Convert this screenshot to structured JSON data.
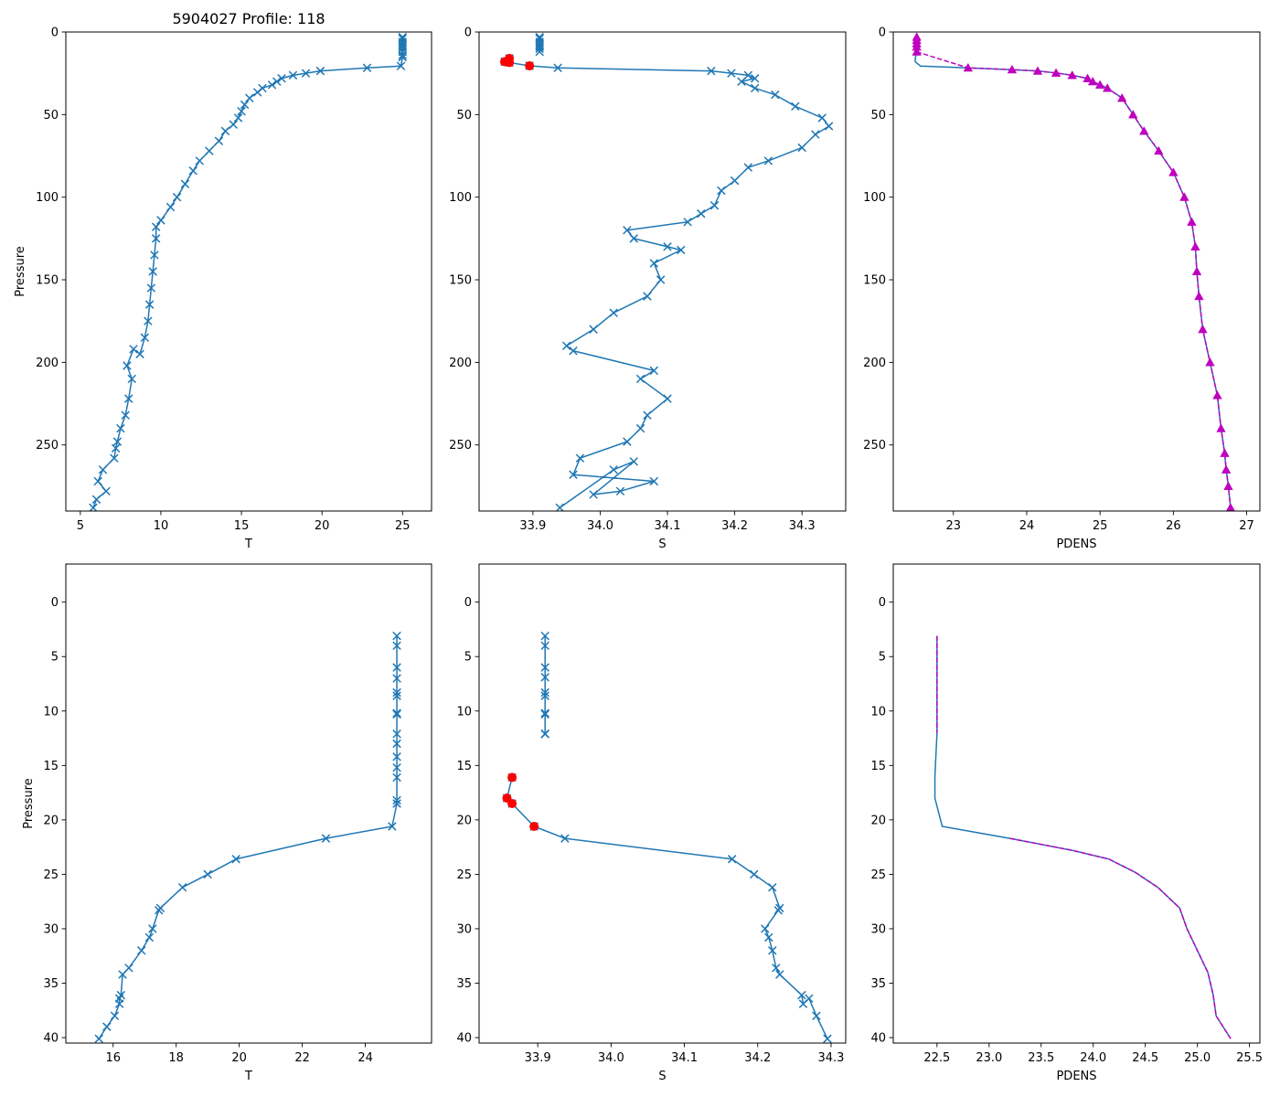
{
  "colors": {
    "line": "#1f77b4",
    "flag": "#ff0000",
    "pdens": "#bf00bf",
    "frame": "#000000"
  },
  "chart_data": [
    {
      "title": "5904027 Profile: 118",
      "type": "line",
      "xlabel": "T",
      "ylabel": "Pressure",
      "xlim": [
        4.1,
        26.8
      ],
      "ylim": [
        290,
        0
      ],
      "xticks": [
        5,
        10,
        15,
        20,
        25
      ],
      "xtick_labels": [
        "5",
        "10",
        "15",
        "20",
        "25"
      ],
      "yticks": [
        0,
        50,
        100,
        150,
        200,
        250
      ],
      "ytick_labels": [
        "0",
        "50",
        "100",
        "150",
        "200",
        "250"
      ],
      "series": [
        {
          "name": "T",
          "marker": "x",
          "style": "solid",
          "color": "#1f77b4",
          "x": [
            25.0,
            25.0,
            25.0,
            25.0,
            25.0,
            25.0,
            25.0,
            25.0,
            25.0,
            25.0,
            24.9,
            22.8,
            19.9,
            19.0,
            18.2,
            17.5,
            17.2,
            16.9,
            16.3,
            16.0,
            15.5,
            15.2,
            15.0,
            14.8,
            14.5,
            14.0,
            13.6,
            13.0,
            12.4,
            12.0,
            11.5,
            11.0,
            10.6,
            10.0,
            9.7,
            9.7,
            9.6,
            9.5,
            9.4,
            9.3,
            9.2,
            9.0,
            8.7,
            8.3,
            7.9,
            8.2,
            8.0,
            7.8,
            7.5,
            7.3,
            7.2,
            7.1,
            6.4,
            6.1,
            6.6,
            6.0,
            5.8
          ],
          "y": [
            3.1,
            4,
            6,
            7,
            8.3,
            9,
            10.2,
            12,
            14,
            15.2,
            20.6,
            21.7,
            23.6,
            25,
            26.2,
            28.1,
            30,
            32,
            34,
            36.5,
            40,
            44,
            48,
            52,
            56,
            60,
            66,
            72,
            78,
            84,
            92,
            100,
            106,
            114,
            118,
            125,
            135,
            145,
            155,
            165,
            175,
            185,
            195,
            192,
            202,
            210,
            222,
            232,
            240,
            248,
            252,
            258,
            265,
            272,
            278,
            283,
            288
          ]
        }
      ]
    },
    {
      "title": "",
      "type": "line",
      "xlabel": "S",
      "ylabel": "",
      "xlim": [
        33.82,
        34.365
      ],
      "ylim": [
        290,
        0
      ],
      "xticks": [
        33.9,
        34.0,
        34.1,
        34.2,
        34.3
      ],
      "xtick_labels": [
        "33.9",
        "34.0",
        "34.1",
        "34.2",
        "34.3"
      ],
      "yticks": [
        0,
        50,
        100,
        150,
        200,
        250
      ],
      "ytick_labels": [
        "0",
        "50",
        "100",
        "150",
        "200",
        "250"
      ],
      "series": [
        {
          "name": "S",
          "marker": "x",
          "style": "solid",
          "color": "#1f77b4",
          "segments": [
            {
              "x": [
                33.91,
                33.91,
                33.91,
                33.91,
                33.91,
                33.91,
                33.91,
                33.91
              ],
              "y": [
                3.1,
                4,
                6,
                7,
                8.3,
                9,
                10.2,
                12
              ]
            },
            {
              "x": [
                33.865,
                33.858,
                33.865,
                33.895,
                33.937,
                34.165,
                34.195,
                34.22,
                34.23,
                34.21,
                34.23,
                34.26,
                34.29,
                34.33,
                34.34,
                34.32,
                34.3,
                34.25,
                34.22,
                34.2,
                34.18,
                34.17,
                34.15,
                34.13,
                34.04,
                34.05,
                34.1,
                34.12,
                34.08,
                34.09,
                34.07,
                34.02,
                33.99,
                33.95,
                33.96,
                34.08,
                34.06,
                34.1,
                34.07,
                34.06,
                34.04,
                33.97,
                33.96,
                34.08,
                34.03,
                33.99,
                34.05,
                34.02,
                33.94
              ],
              "y": [
                16,
                18,
                18.5,
                20.5,
                21.7,
                23.6,
                25,
                26.2,
                28.1,
                30,
                34,
                38,
                45,
                52,
                57,
                62,
                70,
                78,
                82,
                90,
                96,
                105,
                110,
                115,
                120,
                125,
                130,
                132,
                140,
                150,
                160,
                170,
                180,
                190,
                193,
                205,
                210,
                222,
                232,
                240,
                248,
                258,
                268,
                272,
                278,
                280,
                260,
                265,
                288
              ]
            }
          ]
        },
        {
          "name": "flagged",
          "marker": "o",
          "style": "none",
          "color": "#ff0000",
          "x": [
            33.865,
            33.858,
            33.865,
            33.895
          ],
          "y": [
            16,
            18,
            18.5,
            20.5
          ]
        }
      ]
    },
    {
      "title": "",
      "type": "line",
      "xlabel": "PDENS",
      "ylabel": "",
      "xlim": [
        22.18,
        27.18
      ],
      "ylim": [
        290,
        0
      ],
      "xticks": [
        23,
        24,
        25,
        26,
        27
      ],
      "xtick_labels": [
        "23",
        "24",
        "25",
        "26",
        "27"
      ],
      "yticks": [
        0,
        50,
        100,
        150,
        200,
        250
      ],
      "ytick_labels": [
        "0",
        "50",
        "100",
        "150",
        "200",
        "250"
      ],
      "series": [
        {
          "name": "PDENS",
          "marker": "none",
          "style": "solid",
          "color": "#1f77b4",
          "x": [
            22.5,
            22.5,
            22.5,
            22.5,
            22.5,
            22.48,
            22.48,
            22.55,
            23.2,
            23.8,
            24.15,
            24.4,
            24.62,
            24.83,
            24.9,
            25.0,
            25.1,
            25.3,
            25.45,
            25.6,
            25.8,
            26.0,
            26.15,
            26.25,
            26.3,
            26.32,
            26.35,
            26.4,
            26.5,
            26.6,
            26.65,
            26.7,
            26.72,
            26.75,
            26.78
          ],
          "y": [
            3.1,
            6,
            9,
            12,
            12,
            16,
            18,
            20.6,
            21.7,
            22.8,
            23.6,
            24.8,
            26.2,
            28.1,
            30,
            32,
            34,
            40,
            50,
            60,
            72,
            85,
            100,
            115,
            130,
            145,
            160,
            180,
            200,
            220,
            240,
            255,
            265,
            275,
            288
          ]
        },
        {
          "name": "PDENS (dashed)",
          "marker": "^",
          "style": "dashed",
          "color": "#bf00bf",
          "x": [
            22.5,
            22.5,
            22.5,
            22.5,
            22.5,
            23.2,
            23.8,
            24.15,
            24.4,
            24.62,
            24.83,
            24.9,
            25.0,
            25.1,
            25.3,
            25.45,
            25.6,
            25.8,
            26.0,
            26.15,
            26.25,
            26.3,
            26.32,
            26.35,
            26.4,
            26.5,
            26.6,
            26.65,
            26.7,
            26.72,
            26.75,
            26.78
          ],
          "y": [
            3.1,
            5,
            7,
            9,
            12,
            21.7,
            22.8,
            23.6,
            24.8,
            26.2,
            28.1,
            30,
            32,
            34,
            40,
            50,
            60,
            72,
            85,
            100,
            115,
            130,
            145,
            160,
            180,
            200,
            220,
            240,
            255,
            265,
            275,
            288
          ]
        }
      ]
    },
    {
      "title": "",
      "type": "line",
      "xlabel": "T",
      "ylabel": "Pressure",
      "xlim": [
        14.5,
        26.1
      ],
      "ylim": [
        40.5,
        -3.5
      ],
      "xticks": [
        16,
        18,
        20,
        22,
        24
      ],
      "xtick_labels": [
        "16",
        "18",
        "20",
        "22",
        "24"
      ],
      "yticks": [
        0,
        5,
        10,
        15,
        20,
        25,
        30,
        35,
        40
      ],
      "ytick_labels": [
        "0",
        "5",
        "10",
        "15",
        "20",
        "25",
        "30",
        "35",
        "40"
      ],
      "series": [
        {
          "name": "T",
          "marker": "x",
          "style": "solid",
          "color": "#1f77b4",
          "x": [
            25.0,
            25.0,
            25.0,
            25.0,
            25.0,
            25.0,
            25.0,
            25.0,
            25.0,
            25.0,
            25.0,
            25.0,
            25.0,
            25.0,
            25.0,
            24.85,
            22.75,
            19.9,
            19.0,
            18.2,
            17.5,
            17.45,
            17.25,
            17.15,
            16.9,
            16.5,
            16.3,
            16.25,
            16.2,
            16.2,
            16.05,
            15.8,
            15.55
          ],
          "y": [
            3.1,
            4,
            6,
            7,
            8.3,
            8.6,
            10.2,
            10.3,
            12.1,
            13,
            14.2,
            15.2,
            16.1,
            18.2,
            18.5,
            20.6,
            21.7,
            23.6,
            25.0,
            26.2,
            28.1,
            28.3,
            30.0,
            30.8,
            32.0,
            33.6,
            34.2,
            36.1,
            36.4,
            36.9,
            38.0,
            39.0,
            40.1
          ]
        }
      ]
    },
    {
      "title": "",
      "type": "line",
      "xlabel": "S",
      "ylabel": "",
      "xlim": [
        33.82,
        34.32
      ],
      "ylim": [
        40.5,
        -3.5
      ],
      "xticks": [
        33.9,
        34.0,
        34.1,
        34.2,
        34.3
      ],
      "xtick_labels": [
        "33.9",
        "34.0",
        "34.1",
        "34.2",
        "34.3"
      ],
      "yticks": [
        0,
        5,
        10,
        15,
        20,
        25,
        30,
        35,
        40
      ],
      "ytick_labels": [
        "0",
        "5",
        "10",
        "15",
        "20",
        "25",
        "30",
        "35",
        "40"
      ],
      "series": [
        {
          "name": "S",
          "marker": "x",
          "style": "solid",
          "color": "#1f77b4",
          "segments": [
            {
              "x": [
                33.91,
                33.91,
                33.91,
                33.91,
                33.91,
                33.91,
                33.91,
                33.91,
                33.91,
                33.91,
                33.91
              ],
              "y": [
                3.1,
                4,
                6,
                6.9,
                8.3,
                8.6,
                10.2,
                10.3,
                12.1,
                12.1,
                12.1
              ]
            },
            {
              "x": [
                33.865,
                33.858,
                33.865,
                33.895,
                33.937,
                34.165,
                34.195,
                34.22,
                34.23,
                34.228,
                34.21,
                34.215,
                34.22,
                34.225,
                34.23,
                34.26,
                34.262,
                34.27,
                34.28,
                34.295
              ],
              "y": [
                16.1,
                18.0,
                18.5,
                20.6,
                21.7,
                23.6,
                25.0,
                26.2,
                28.1,
                28.3,
                30.0,
                30.8,
                32.0,
                33.6,
                34.2,
                36.1,
                36.9,
                36.4,
                38.0,
                40.1
              ]
            }
          ]
        },
        {
          "name": "flagged",
          "marker": "o",
          "style": "none",
          "color": "#ff0000",
          "x": [
            33.865,
            33.858,
            33.865,
            33.895
          ],
          "y": [
            16.1,
            18.0,
            18.5,
            20.6
          ]
        }
      ]
    },
    {
      "title": "",
      "type": "line",
      "xlabel": "PDENS",
      "ylabel": "",
      "xlim": [
        22.08,
        25.6
      ],
      "ylim": [
        40.5,
        -3.5
      ],
      "xticks": [
        22.5,
        23.0,
        23.5,
        24.0,
        24.5,
        25.0,
        25.5
      ],
      "xtick_labels": [
        "22.5",
        "23.0",
        "23.5",
        "24.0",
        "24.5",
        "25.0",
        "25.5"
      ],
      "yticks": [
        0,
        5,
        10,
        15,
        20,
        25,
        30,
        35,
        40
      ],
      "ytick_labels": [
        "0",
        "5",
        "10",
        "15",
        "20",
        "25",
        "30",
        "35",
        "40"
      ],
      "series": [
        {
          "name": "PDENS",
          "marker": "none",
          "style": "solid",
          "color": "#1f77b4",
          "x": [
            22.5,
            22.5,
            22.5,
            22.48,
            22.48,
            22.55,
            23.2,
            23.8,
            24.15,
            24.4,
            24.62,
            24.83,
            24.9,
            25.0,
            25.1,
            25.15,
            25.18,
            25.32
          ],
          "y": [
            3.1,
            8,
            12,
            16,
            18,
            20.6,
            21.7,
            22.8,
            23.6,
            24.8,
            26.2,
            28.1,
            30,
            32,
            34,
            36,
            38,
            40.1
          ]
        },
        {
          "name": "PDENS (dashed)",
          "marker": "none",
          "style": "dashed",
          "color": "#bf00bf",
          "segments": [
            {
              "x": [
                22.5,
                22.5,
                22.5
              ],
              "y": [
                3.1,
                8,
                12
              ]
            },
            {
              "x": [
                23.2,
                23.8,
                24.15,
                24.4,
                24.62,
                24.83,
                24.9,
                25.0,
                25.1,
                25.15,
                25.18,
                25.32
              ],
              "y": [
                21.7,
                22.8,
                23.6,
                24.8,
                26.2,
                28.1,
                30,
                32,
                34,
                36,
                38,
                40.1
              ]
            }
          ]
        }
      ]
    }
  ]
}
